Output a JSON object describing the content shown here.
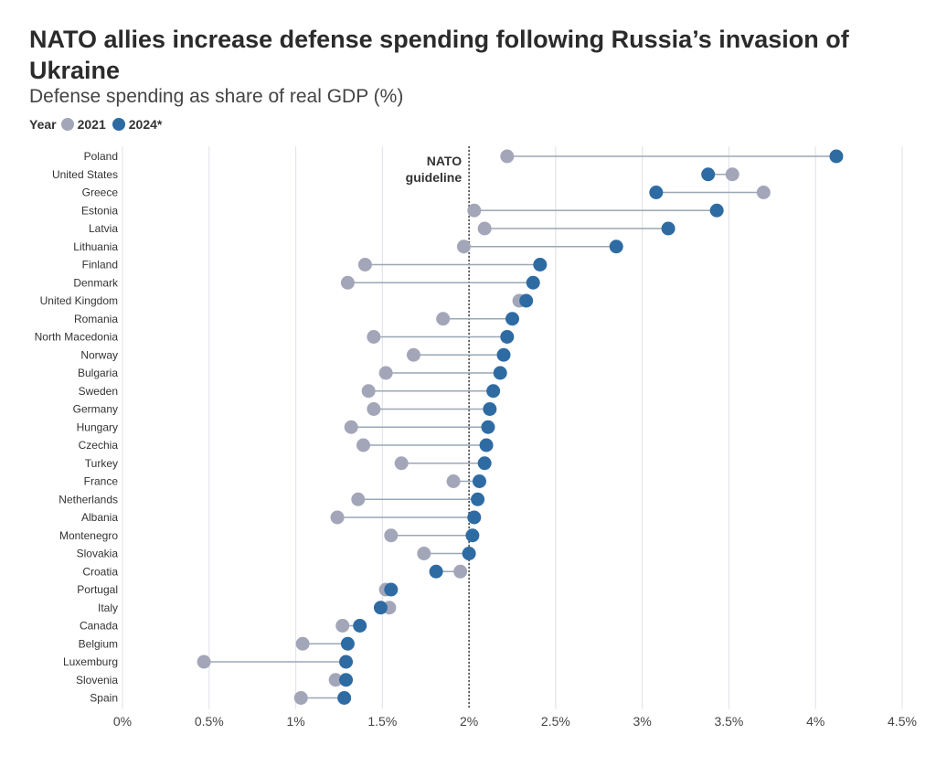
{
  "title": "NATO allies increase defense spending following Russia’s invasion of Ukraine",
  "subtitle": "Defense spending as share of real GDP (%)",
  "legend": {
    "label": "Year",
    "series_2021": "2021",
    "series_2024": "2024*"
  },
  "colors": {
    "series_2021": "#a3a6b8",
    "series_2024": "#2e6ba3",
    "connector": "#9aa7b5",
    "grid": "#e2e5ea",
    "guideline": "#222222"
  },
  "chart_data": {
    "type": "scatter",
    "subtype": "dumbbell",
    "x_ticks": [
      "0%",
      "0.5%",
      "1%",
      "1.5%",
      "2%",
      "2.5%",
      "3%",
      "3.5%",
      "4%",
      "4.5%"
    ],
    "xlim": [
      0,
      4.5
    ],
    "grid": true,
    "guideline": {
      "value": 2.0,
      "label_line1": "NATO",
      "label_line2": "guideline"
    },
    "series_names": [
      "2021",
      "2024*"
    ],
    "countries": [
      {
        "name": "Poland",
        "y2021": 2.22,
        "y2024": 4.12
      },
      {
        "name": "United States",
        "y2021": 3.52,
        "y2024": 3.38
      },
      {
        "name": "Greece",
        "y2021": 3.7,
        "y2024": 3.08
      },
      {
        "name": "Estonia",
        "y2021": 2.03,
        "y2024": 3.43
      },
      {
        "name": "Latvia",
        "y2021": 2.09,
        "y2024": 3.15
      },
      {
        "name": "Lithuania",
        "y2021": 1.97,
        "y2024": 2.85
      },
      {
        "name": "Finland",
        "y2021": 1.4,
        "y2024": 2.41
      },
      {
        "name": "Denmark",
        "y2021": 1.3,
        "y2024": 2.37
      },
      {
        "name": "United Kingdom",
        "y2021": 2.29,
        "y2024": 2.33
      },
      {
        "name": "Romania",
        "y2021": 1.85,
        "y2024": 2.25
      },
      {
        "name": "North Macedonia",
        "y2021": 1.45,
        "y2024": 2.22
      },
      {
        "name": "Norway",
        "y2021": 1.68,
        "y2024": 2.2
      },
      {
        "name": "Bulgaria",
        "y2021": 1.52,
        "y2024": 2.18
      },
      {
        "name": "Sweden",
        "y2021": 1.42,
        "y2024": 2.14
      },
      {
        "name": "Germany",
        "y2021": 1.45,
        "y2024": 2.12
      },
      {
        "name": "Hungary",
        "y2021": 1.32,
        "y2024": 2.11
      },
      {
        "name": "Czechia",
        "y2021": 1.39,
        "y2024": 2.1
      },
      {
        "name": "Turkey",
        "y2021": 1.61,
        "y2024": 2.09
      },
      {
        "name": "France",
        "y2021": 1.91,
        "y2024": 2.06
      },
      {
        "name": "Netherlands",
        "y2021": 1.36,
        "y2024": 2.05
      },
      {
        "name": "Albania",
        "y2021": 1.24,
        "y2024": 2.03
      },
      {
        "name": "Montenegro",
        "y2021": 1.55,
        "y2024": 2.02
      },
      {
        "name": "Slovakia",
        "y2021": 1.74,
        "y2024": 2.0
      },
      {
        "name": "Croatia",
        "y2021": 1.95,
        "y2024": 1.81
      },
      {
        "name": "Portugal",
        "y2021": 1.52,
        "y2024": 1.55
      },
      {
        "name": "Italy",
        "y2021": 1.54,
        "y2024": 1.49
      },
      {
        "name": "Canada",
        "y2021": 1.27,
        "y2024": 1.37
      },
      {
        "name": "Belgium",
        "y2021": 1.04,
        "y2024": 1.3
      },
      {
        "name": "Luxemburg",
        "y2021": 0.47,
        "y2024": 1.29
      },
      {
        "name": "Slovenia",
        "y2021": 1.23,
        "y2024": 1.29
      },
      {
        "name": "Spain",
        "y2021": 1.03,
        "y2024": 1.28
      }
    ]
  }
}
